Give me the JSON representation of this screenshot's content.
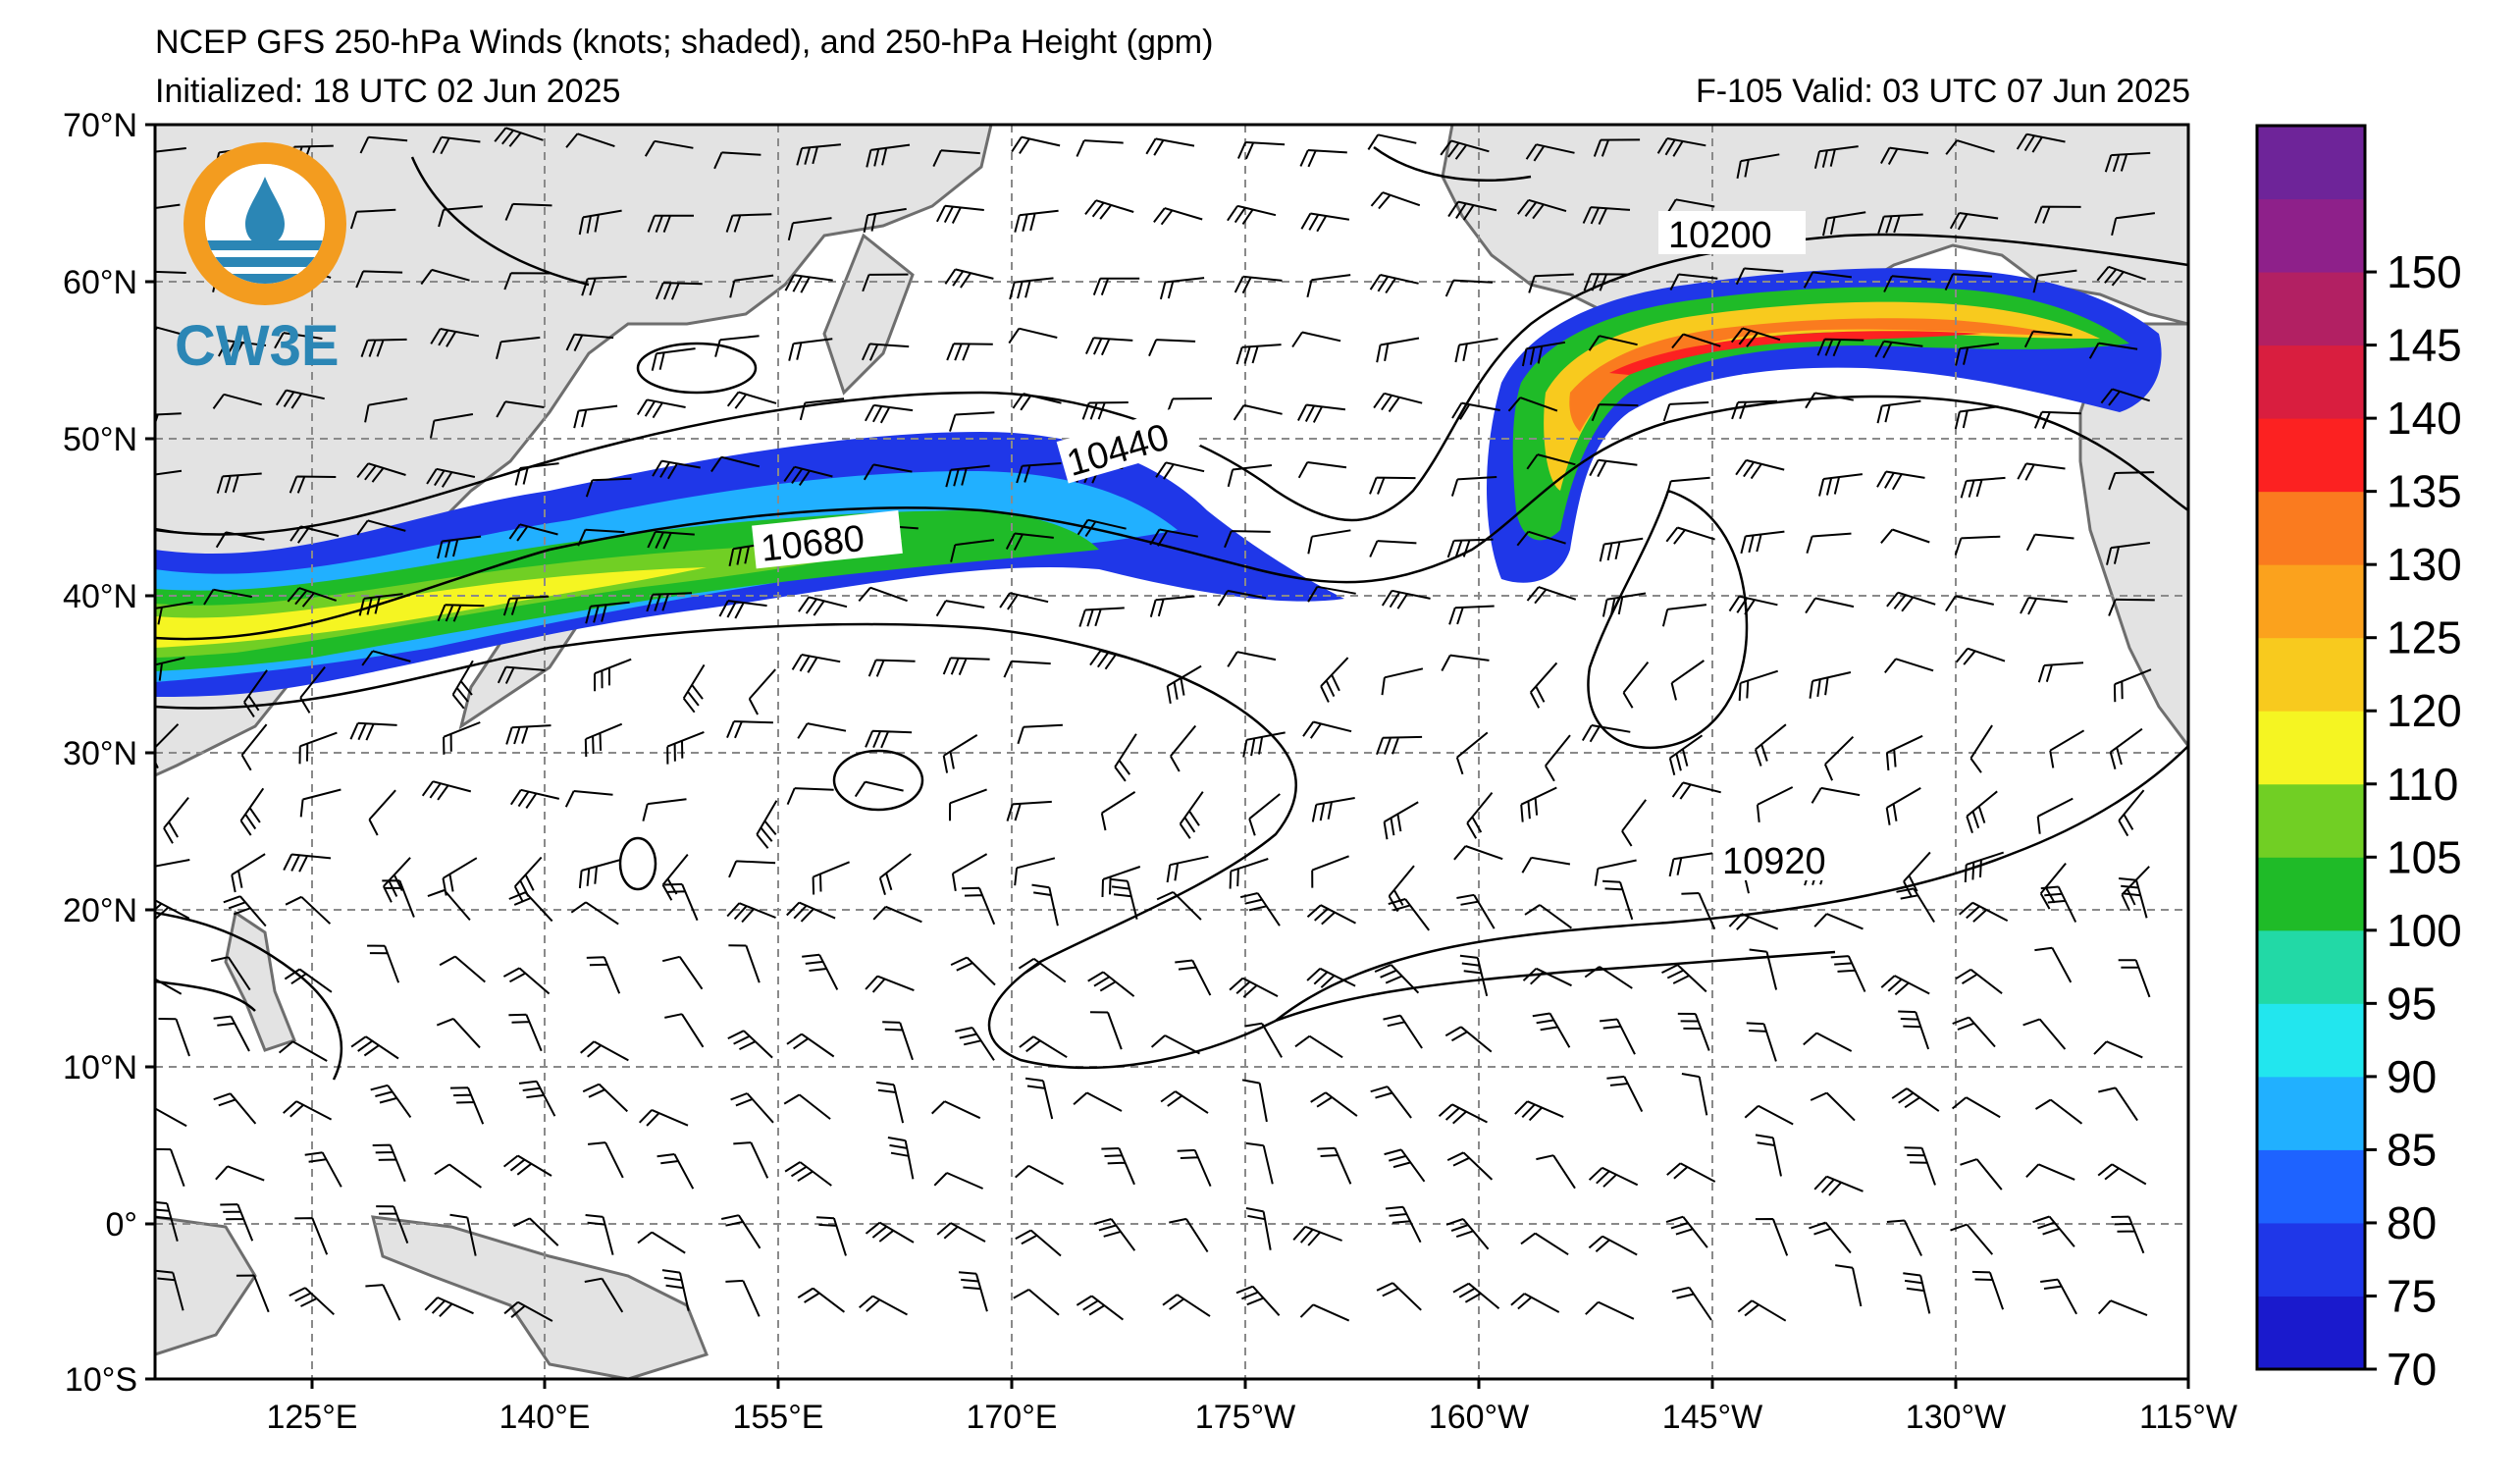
{
  "title": {
    "line1": "NCEP GFS 250-hPa Winds (knots; shaded), and 250-hPa Height (gpm)",
    "init": "Initialized: 18 UTC 02 Jun 2025",
    "valid": "F-105  Valid: 03 UTC 07 Jun 2025"
  },
  "logo": {
    "text": "CW3E",
    "ring_color": "#f39c1f",
    "wave_color": "#2b86b5"
  },
  "axes": {
    "lat_labels": [
      "70°N",
      "60°N",
      "50°N",
      "40°N",
      "30°N",
      "20°N",
      "10°N",
      "0°",
      "10°S"
    ],
    "lon_labels": [
      "125°E",
      "140°E",
      "155°E",
      "170°E",
      "175°W",
      "160°W",
      "145°W",
      "130°W",
      "115°W"
    ]
  },
  "contours": {
    "labels": [
      "10200",
      "10440",
      "10680",
      "10920"
    ]
  },
  "colorbar": {
    "labels": [
      "70",
      "75",
      "80",
      "85",
      "90",
      "95",
      "100",
      "105",
      "110",
      "120",
      "125",
      "130",
      "135",
      "140",
      "145",
      "150"
    ],
    "colors": [
      "#1a1acd",
      "#1f37e8",
      "#1e63ff",
      "#21b0ff",
      "#22e6ee",
      "#22d9a6",
      "#1fbb28",
      "#71cf24",
      "#f5f522",
      "#f8ca1e",
      "#fba21d",
      "#fa7b1f",
      "#fc2121",
      "#d91e3f",
      "#b22063",
      "#8e208a",
      "#6e2499"
    ]
  }
}
